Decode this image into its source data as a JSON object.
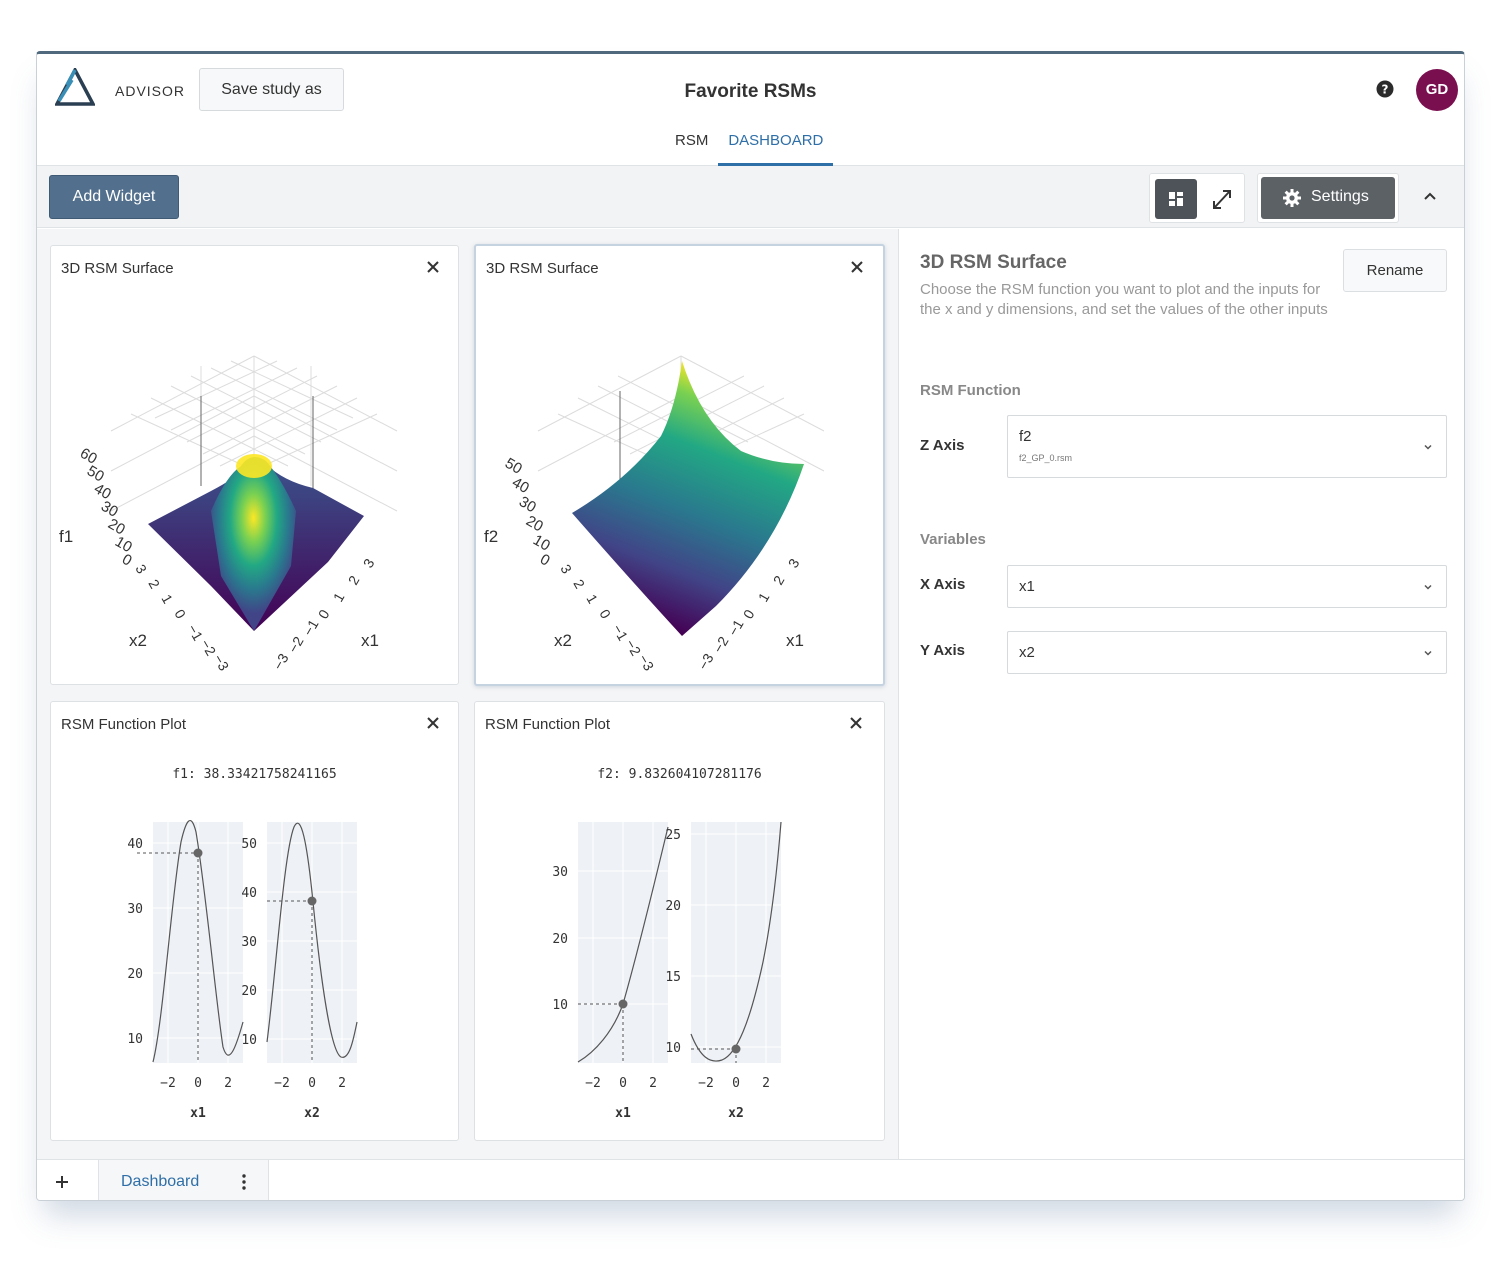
{
  "header": {
    "brand": "ADVISOR",
    "save_label": "Save study as",
    "title": "Favorite RSMs",
    "tabs": [
      {
        "label": "RSM"
      },
      {
        "label": "DASHBOARD"
      }
    ],
    "active_tab": "DASHBOARD",
    "avatar_initials": "GD",
    "avatar_color": "#7a0f4f"
  },
  "toolbar": {
    "add_widget_label": "Add Widget",
    "settings_label": "Settings"
  },
  "widgets": [
    {
      "title": "3D RSM Surface",
      "z_label": "f1",
      "x_label": "x1",
      "y_label": "x2",
      "z_ticks": [
        "0",
        "10",
        "20",
        "30",
        "40",
        "50",
        "60"
      ],
      "x_ticks": [
        "−3",
        "−2",
        "−1",
        "0",
        "1",
        "2",
        "3"
      ],
      "y_ticks": [
        "3",
        "2",
        "1",
        "0",
        "−1",
        "−2",
        "−3"
      ]
    },
    {
      "title": "3D RSM Surface",
      "z_label": "f2",
      "x_label": "x1",
      "y_label": "x2",
      "z_ticks": [
        "0",
        "10",
        "20",
        "30",
        "40",
        "50"
      ],
      "x_ticks": [
        "−3",
        "−2",
        "−1",
        "0",
        "1",
        "2",
        "3"
      ],
      "y_ticks": [
        "3",
        "2",
        "1",
        "0",
        "−1",
        "−2",
        "−3"
      ]
    },
    {
      "title": "RSM Function Plot",
      "value_text": "f1: 38.33421758241165",
      "panels": [
        {
          "xlabel": "x1",
          "y_ticks": [
            "10",
            "20",
            "30",
            "40"
          ],
          "x_ticks": [
            "−2",
            "0",
            "2"
          ],
          "current_x": 0,
          "current_y": 38.3
        },
        {
          "xlabel": "x2",
          "y_ticks": [
            "10",
            "20",
            "30",
            "40",
            "50"
          ],
          "x_ticks": [
            "−2",
            "0",
            "2"
          ],
          "current_x": 0,
          "current_y": 38.3
        }
      ]
    },
    {
      "title": "RSM Function Plot",
      "value_text": "f2: 9.832604107281176",
      "panels": [
        {
          "xlabel": "x1",
          "y_ticks": [
            "10",
            "20",
            "30"
          ],
          "x_ticks": [
            "−2",
            "0",
            "2"
          ],
          "current_x": 0,
          "current_y": 9.8
        },
        {
          "xlabel": "x2",
          "y_ticks": [
            "10",
            "15",
            "20",
            "25"
          ],
          "x_ticks": [
            "−2",
            "0",
            "2"
          ],
          "current_x": 0,
          "current_y": 9.8
        }
      ]
    }
  ],
  "settings_panel": {
    "title": "3D RSM Surface",
    "description": "Choose the RSM function you want to plot and the inputs for the x and y dimensions, and set the values of the other inputs",
    "rename_label": "Rename",
    "rsm_function_section": "RSM Function",
    "z_axis_label": "Z Axis",
    "z_axis_value": "f2",
    "z_axis_file": "f2_GP_0.rsm",
    "variables_section": "Variables",
    "x_axis_label": "X Axis",
    "x_axis_value": "x1",
    "y_axis_label": "Y Axis",
    "y_axis_value": "x2"
  },
  "bottom_tabs": {
    "active": "Dashboard"
  },
  "colors": {
    "accent": "#2f6fa8",
    "primary_button": "#52708d",
    "viridis_low": "#440154",
    "viridis_mid": "#21918c",
    "viridis_high": "#fde725"
  },
  "icons": [
    "logo-triangle-icon",
    "help-icon",
    "grid-view-icon",
    "expand-icon",
    "gear-icon",
    "chevron-up-icon",
    "close-icon",
    "chevron-down-icon",
    "plus-icon",
    "kebab-menu-icon"
  ]
}
